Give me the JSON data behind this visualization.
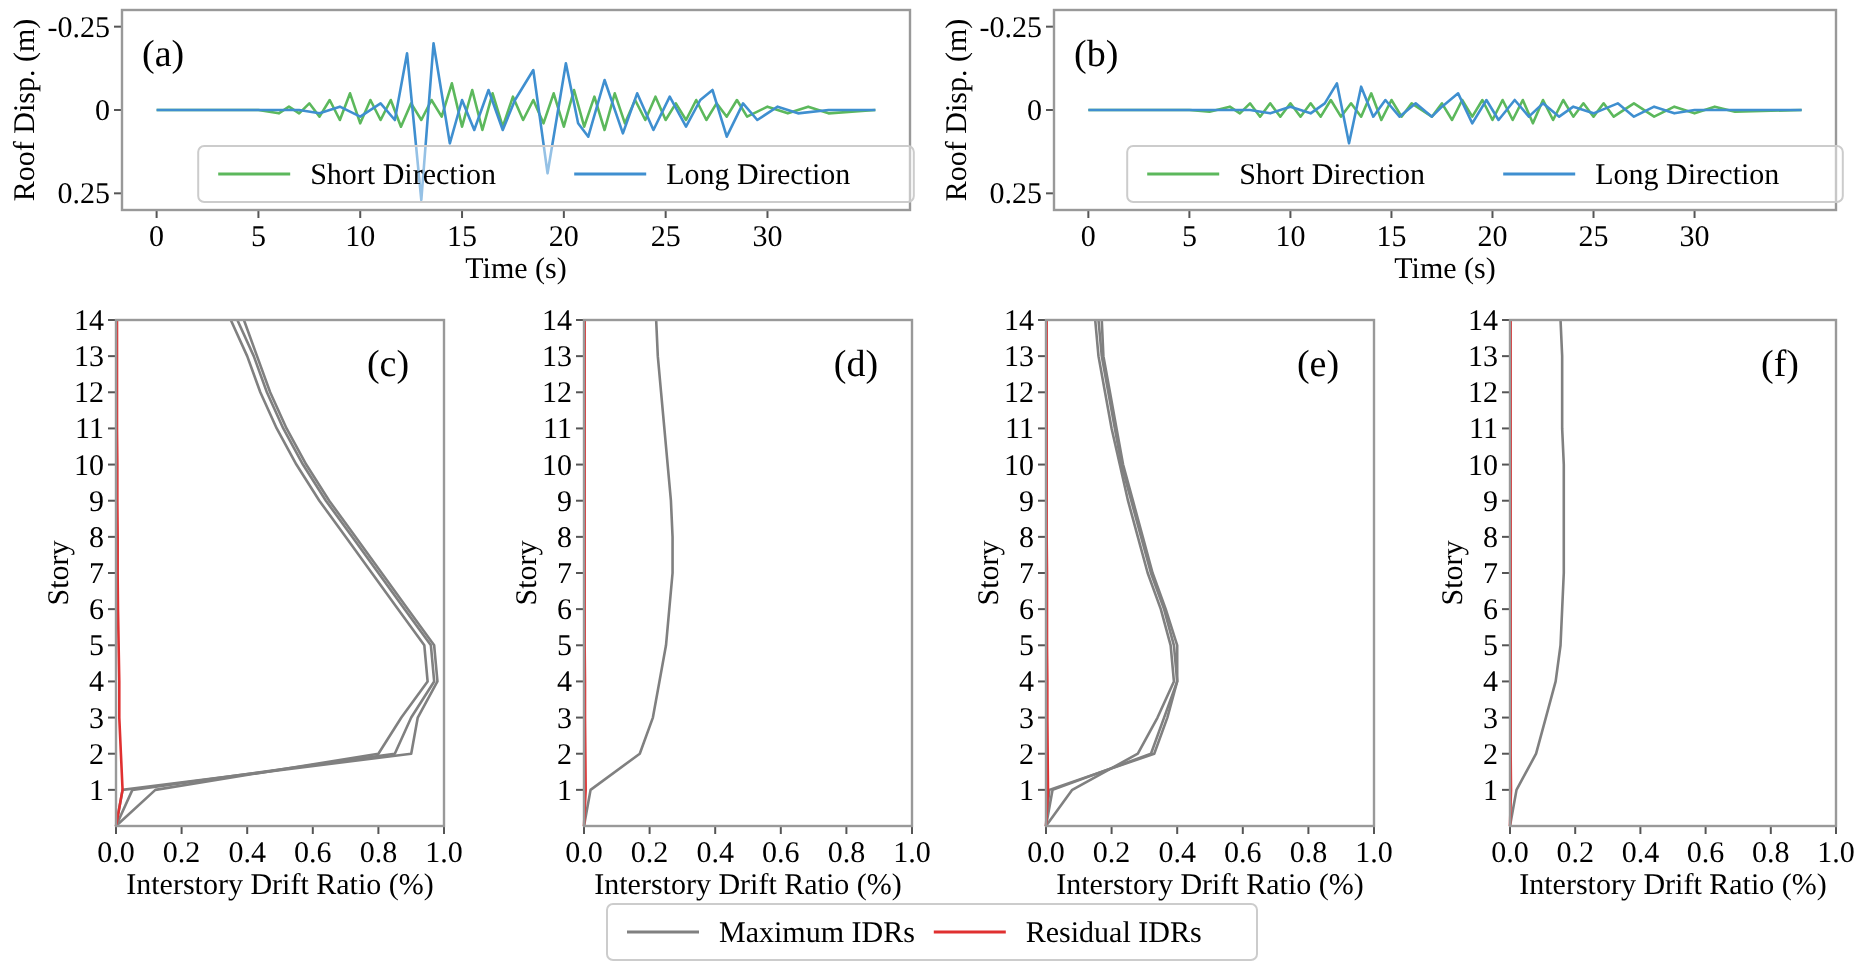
{
  "chart_data": [
    {
      "type": "line",
      "xlabel": "Time (s)",
      "ylabel": "Roof Disp. (m)",
      "annotations": [
        "(a)"
      ],
      "xlim": [
        -1.7,
        37
      ],
      "xticks": [
        0,
        5,
        10,
        15,
        20,
        25,
        30
      ],
      "ylim": [
        0.3,
        -0.3
      ],
      "yticks": [
        -0.25,
        0,
        0.25
      ],
      "legend": "bottom",
      "series": [
        {
          "name": "Short Direction",
          "color": "#5cb85c",
          "x": [
            0,
            5,
            6,
            6.5,
            7,
            7.5,
            8,
            8.5,
            9,
            9.5,
            10,
            10.5,
            11,
            11.5,
            12,
            12.5,
            13,
            13.5,
            14,
            14.5,
            15,
            15.5,
            16,
            16.5,
            17,
            17.5,
            18,
            18.5,
            19,
            19.5,
            20,
            20.5,
            21,
            21.5,
            22,
            22.5,
            23,
            23.5,
            24,
            24.5,
            25,
            25.5,
            26,
            26.5,
            27,
            27.5,
            28,
            28.5,
            29,
            30,
            31,
            32,
            33,
            35.3
          ],
          "values": [
            0,
            0,
            0.01,
            -0.01,
            0.01,
            -0.02,
            0.02,
            -0.03,
            0.03,
            -0.05,
            0.04,
            -0.03,
            0.03,
            -0.03,
            0.05,
            -0.02,
            0.03,
            -0.03,
            0.02,
            -0.08,
            0.05,
            -0.06,
            0.06,
            -0.05,
            0.05,
            -0.04,
            0.03,
            -0.03,
            0.04,
            -0.05,
            0.05,
            -0.06,
            0.05,
            -0.04,
            0.06,
            -0.05,
            0.04,
            -0.03,
            0.03,
            -0.04,
            0.03,
            -0.02,
            0.03,
            -0.03,
            0.03,
            -0.02,
            0.02,
            -0.03,
            0.02,
            -0.01,
            0.01,
            -0.01,
            0.01,
            0
          ]
        },
        {
          "name": "Long Direction",
          "color": "#3f8fd0",
          "x": [
            0,
            7,
            8,
            9,
            10,
            11,
            11.7,
            12.3,
            13,
            13.6,
            14.4,
            15,
            15.6,
            16.3,
            17,
            17.6,
            18.5,
            19.2,
            20.1,
            20.7,
            21.2,
            22,
            22.9,
            23.6,
            24.4,
            25.2,
            26,
            26.7,
            27.3,
            28,
            28.8,
            29.5,
            30.5,
            31.5,
            33,
            35.3
          ],
          "values": [
            0,
            0,
            0.01,
            -0.01,
            0.02,
            -0.02,
            0.03,
            -0.17,
            0.27,
            -0.2,
            0.1,
            -0.03,
            0.06,
            -0.06,
            0.06,
            -0.03,
            -0.12,
            0.19,
            -0.14,
            0.04,
            0.08,
            -0.09,
            0.07,
            -0.05,
            0.06,
            -0.04,
            0.05,
            -0.03,
            -0.06,
            0.08,
            -0.02,
            0.03,
            -0.01,
            0.01,
            0,
            0
          ]
        }
      ]
    },
    {
      "type": "line",
      "xlabel": "Time (s)",
      "ylabel": "Roof Disp. (m)",
      "annotations": [
        "(b)"
      ],
      "xlim": [
        -1.7,
        37
      ],
      "xticks": [
        0,
        5,
        10,
        15,
        20,
        25,
        30
      ],
      "ylim": [
        0.3,
        -0.3
      ],
      "yticks": [
        -0.25,
        0,
        0.25
      ],
      "legend": "bottom",
      "series": [
        {
          "name": "Short Direction",
          "color": "#5cb85c",
          "x": [
            0,
            5,
            6,
            7,
            7.5,
            8,
            8.5,
            9,
            9.5,
            10,
            10.5,
            11,
            11.5,
            12,
            12.5,
            13,
            13.5,
            14,
            14.5,
            15,
            15.5,
            16,
            17,
            17.5,
            18,
            18.5,
            19,
            19.5,
            20,
            20.5,
            21,
            21.5,
            22,
            22.5,
            23,
            23.5,
            24,
            24.5,
            25,
            25.5,
            26,
            27,
            28,
            29,
            30,
            31,
            32,
            35.3
          ],
          "values": [
            0,
            0,
            0.005,
            -0.01,
            0.01,
            -0.02,
            0.02,
            -0.02,
            0.02,
            -0.02,
            0.02,
            -0.02,
            0.02,
            -0.03,
            0.02,
            -0.02,
            0.02,
            -0.05,
            0.03,
            -0.03,
            0.02,
            -0.02,
            0.02,
            -0.02,
            0.03,
            -0.03,
            0.02,
            -0.03,
            0.03,
            -0.03,
            0.03,
            -0.03,
            0.04,
            -0.03,
            0.03,
            -0.03,
            0.02,
            -0.02,
            0.02,
            -0.02,
            0.02,
            -0.02,
            0.02,
            -0.01,
            0.01,
            -0.01,
            0.005,
            0
          ]
        },
        {
          "name": "Long Direction",
          "color": "#3f8fd0",
          "x": [
            0,
            8,
            9,
            10,
            11,
            11.7,
            12.3,
            12.9,
            13.5,
            14.1,
            14.7,
            15.4,
            16.2,
            17,
            17.5,
            18.3,
            19,
            19.7,
            20.3,
            21.1,
            21.8,
            22.5,
            23.3,
            24,
            25,
            26.2,
            27,
            28,
            29,
            30,
            35.3
          ],
          "values": [
            0,
            0,
            0.01,
            -0.01,
            0.01,
            -0.02,
            -0.08,
            0.1,
            -0.07,
            0.02,
            -0.03,
            0.02,
            -0.02,
            0.02,
            -0.01,
            -0.05,
            0.04,
            -0.03,
            0.03,
            -0.03,
            0.02,
            -0.02,
            0.02,
            -0.01,
            0.01,
            -0.02,
            0.02,
            -0.01,
            0.01,
            0,
            0
          ]
        }
      ]
    },
    {
      "type": "line",
      "xlabel": "Interstory Drift Ratio (%)",
      "ylabel": "Story",
      "annotations": [
        "(c)"
      ],
      "xlim": [
        0,
        1
      ],
      "xticks": [
        {
          "value": 0,
          "label": "0.0"
        },
        {
          "value": 0.2,
          "label": "0.2"
        },
        {
          "value": 0.4,
          "label": "0.4"
        },
        {
          "value": 0.6,
          "label": "0.6"
        },
        {
          "value": 0.8,
          "label": "0.8"
        },
        {
          "value": 1,
          "label": "1.0"
        }
      ],
      "ylim": [
        0,
        14
      ],
      "yticks": [
        1,
        2,
        3,
        4,
        5,
        6,
        7,
        8,
        9,
        10,
        11,
        12,
        13,
        14
      ],
      "legend": "bottom",
      "series": [
        {
          "name": "Maximum IDRs",
          "color": "#808080",
          "x": [
            0,
            0.05,
            0.85,
            0.9,
            0.97,
            0.96,
            0.88,
            0.8,
            0.72,
            0.64,
            0.57,
            0.51,
            0.46,
            0.42,
            0.37
          ],
          "values": [
            0,
            1,
            2,
            3,
            4,
            5,
            6,
            7,
            8,
            9,
            10,
            11,
            12,
            13,
            14
          ]
        },
        {
          "color": "#808080",
          "x": [
            0,
            0.12,
            0.8,
            0.87,
            0.95,
            0.94,
            0.86,
            0.78,
            0.7,
            0.62,
            0.55,
            0.49,
            0.44,
            0.4,
            0.35
          ],
          "values": [
            0,
            1,
            2,
            3,
            4,
            5,
            6,
            7,
            8,
            9,
            10,
            11,
            12,
            13,
            14
          ]
        },
        {
          "color": "#808080",
          "x": [
            0,
            0.02,
            0.9,
            0.92,
            0.98,
            0.97,
            0.89,
            0.81,
            0.73,
            0.65,
            0.58,
            0.52,
            0.47,
            0.43,
            0.39
          ],
          "values": [
            0,
            1,
            2,
            3,
            4,
            5,
            6,
            7,
            8,
            9,
            10,
            11,
            12,
            13,
            14
          ]
        },
        {
          "name": "Residual IDRs",
          "color": "#e03030",
          "x": [
            0,
            0.02,
            0.015,
            0.01,
            0.01,
            0.008,
            0.006,
            0.005,
            0.005,
            0.004,
            0.004,
            0.003,
            0.003,
            0.003,
            0.003
          ],
          "values": [
            0,
            1,
            2,
            3,
            4,
            5,
            6,
            7,
            8,
            9,
            10,
            11,
            12,
            13,
            14
          ]
        }
      ]
    },
    {
      "type": "line",
      "xlabel": "Interstory Drift Ratio (%)",
      "ylabel": "Story",
      "annotations": [
        "(d)"
      ],
      "xlim": [
        0,
        1
      ],
      "xticks": [
        {
          "value": 0,
          "label": "0.0"
        },
        {
          "value": 0.2,
          "label": "0.2"
        },
        {
          "value": 0.4,
          "label": "0.4"
        },
        {
          "value": 0.6,
          "label": "0.6"
        },
        {
          "value": 0.8,
          "label": "0.8"
        },
        {
          "value": 1,
          "label": "1.0"
        }
      ],
      "ylim": [
        0,
        14
      ],
      "yticks": [
        1,
        2,
        3,
        4,
        5,
        6,
        7,
        8,
        9,
        10,
        11,
        12,
        13,
        14
      ],
      "series": [
        {
          "color": "#808080",
          "x": [
            0,
            0.02,
            0.17,
            0.21,
            0.23,
            0.25,
            0.26,
            0.27,
            0.27,
            0.265,
            0.255,
            0.245,
            0.235,
            0.225,
            0.22
          ],
          "values": [
            0,
            1,
            2,
            3,
            4,
            5,
            6,
            7,
            8,
            9,
            10,
            11,
            12,
            13,
            14
          ]
        },
        {
          "color": "#e03030",
          "x": [
            0,
            0.005,
            0.004,
            0.003,
            0.003,
            0.002,
            0.002,
            0.002,
            0.002,
            0.002,
            0.002,
            0.002,
            0.002,
            0.002,
            0.002
          ],
          "values": [
            0,
            1,
            2,
            3,
            4,
            5,
            6,
            7,
            8,
            9,
            10,
            11,
            12,
            13,
            14
          ]
        }
      ]
    },
    {
      "type": "line",
      "xlabel": "Interstory Drift Ratio (%)",
      "ylabel": "Story",
      "annotations": [
        "(e)"
      ],
      "xlim": [
        0,
        1
      ],
      "xticks": [
        {
          "value": 0,
          "label": "0.0"
        },
        {
          "value": 0.2,
          "label": "0.2"
        },
        {
          "value": 0.4,
          "label": "0.4"
        },
        {
          "value": 0.6,
          "label": "0.6"
        },
        {
          "value": 0.8,
          "label": "0.8"
        },
        {
          "value": 1,
          "label": "1.0"
        }
      ],
      "ylim": [
        0,
        14
      ],
      "yticks": [
        1,
        2,
        3,
        4,
        5,
        6,
        7,
        8,
        9,
        10,
        11,
        12,
        13,
        14
      ],
      "series": [
        {
          "color": "#808080",
          "x": [
            0,
            0.02,
            0.32,
            0.36,
            0.4,
            0.39,
            0.36,
            0.32,
            0.29,
            0.26,
            0.23,
            0.21,
            0.19,
            0.17,
            0.16
          ],
          "values": [
            0,
            1,
            2,
            3,
            4,
            5,
            6,
            7,
            8,
            9,
            10,
            11,
            12,
            13,
            14
          ]
        },
        {
          "color": "#808080",
          "x": [
            0,
            0.08,
            0.28,
            0.34,
            0.39,
            0.38,
            0.35,
            0.31,
            0.28,
            0.25,
            0.225,
            0.2,
            0.18,
            0.16,
            0.15
          ],
          "values": [
            0,
            1,
            2,
            3,
            4,
            5,
            6,
            7,
            8,
            9,
            10,
            11,
            12,
            13,
            14
          ]
        },
        {
          "color": "#808080",
          "x": [
            0,
            0.01,
            0.33,
            0.37,
            0.4,
            0.4,
            0.365,
            0.325,
            0.295,
            0.265,
            0.235,
            0.215,
            0.195,
            0.175,
            0.17
          ],
          "values": [
            0,
            1,
            2,
            3,
            4,
            5,
            6,
            7,
            8,
            9,
            10,
            11,
            12,
            13,
            14
          ]
        },
        {
          "color": "#e03030",
          "x": [
            0,
            0.006,
            0.005,
            0.004,
            0.004,
            0.003,
            0.003,
            0.003,
            0.002,
            0.002,
            0.002,
            0.002,
            0.002,
            0.002,
            0.002
          ],
          "values": [
            0,
            1,
            2,
            3,
            4,
            5,
            6,
            7,
            8,
            9,
            10,
            11,
            12,
            13,
            14
          ]
        }
      ]
    },
    {
      "type": "line",
      "xlabel": "Interstory Drift Ratio (%)",
      "ylabel": "Story",
      "annotations": [
        "(f)"
      ],
      "xlim": [
        0,
        1
      ],
      "xticks": [
        {
          "value": 0,
          "label": "0.0"
        },
        {
          "value": 0.2,
          "label": "0.2"
        },
        {
          "value": 0.4,
          "label": "0.4"
        },
        {
          "value": 0.6,
          "label": "0.6"
        },
        {
          "value": 0.8,
          "label": "0.8"
        },
        {
          "value": 1,
          "label": "1.0"
        }
      ],
      "ylim": [
        0,
        14
      ],
      "yticks": [
        1,
        2,
        3,
        4,
        5,
        6,
        7,
        8,
        9,
        10,
        11,
        12,
        13,
        14
      ],
      "series": [
        {
          "color": "#808080",
          "x": [
            0,
            0.02,
            0.08,
            0.11,
            0.14,
            0.155,
            0.16,
            0.165,
            0.165,
            0.165,
            0.165,
            0.16,
            0.16,
            0.16,
            0.155
          ],
          "values": [
            0,
            1,
            2,
            3,
            4,
            5,
            6,
            7,
            8,
            9,
            10,
            11,
            12,
            13,
            14
          ]
        },
        {
          "color": "#e03030",
          "x": [
            0,
            0.003,
            0.002,
            0.002,
            0.002,
            0.002,
            0.002,
            0.002,
            0.002,
            0.002,
            0.002,
            0.002,
            0.002,
            0.002,
            0.002
          ],
          "values": [
            0,
            1,
            2,
            3,
            4,
            5,
            6,
            7,
            8,
            9,
            10,
            11,
            12,
            13,
            14
          ]
        }
      ]
    }
  ]
}
